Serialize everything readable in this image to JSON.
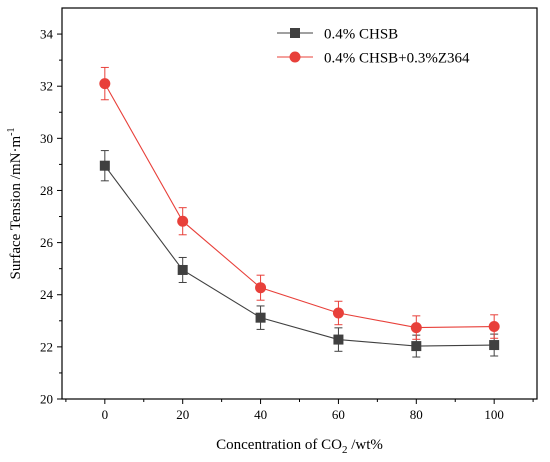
{
  "chart_data": {
    "type": "line",
    "xlabel_main": "Concentration of CO",
    "xlabel_sub": "2",
    "xlabel_tail": " /wt%",
    "ylabel": "Surface Tension /mN·m",
    "ylabel_sup": "-1",
    "xlim": [
      -11,
      111
    ],
    "ylim": [
      20,
      35
    ],
    "xticks": [
      0,
      20,
      40,
      60,
      80,
      100
    ],
    "yticks": [
      20,
      22,
      24,
      26,
      28,
      30,
      32,
      34
    ],
    "grid": false,
    "legend_position": "top-right",
    "series": [
      {
        "name": "0.4% CHSB",
        "marker": "square",
        "color": "#404040",
        "x": [
          0,
          20,
          40,
          60,
          80,
          100
        ],
        "y": [
          28.95,
          24.95,
          23.12,
          22.28,
          22.03,
          22.07
        ],
        "error": [
          0.58,
          0.48,
          0.45,
          0.45,
          0.42,
          0.42
        ]
      },
      {
        "name": "0.4% CHSB+0.3%Z364",
        "marker": "circle",
        "color": "#e8403a",
        "x": [
          0,
          20,
          40,
          60,
          80,
          100
        ],
        "y": [
          32.1,
          26.82,
          24.27,
          23.3,
          22.74,
          22.78
        ],
        "error": [
          0.62,
          0.52,
          0.48,
          0.45,
          0.45,
          0.45
        ]
      }
    ]
  }
}
